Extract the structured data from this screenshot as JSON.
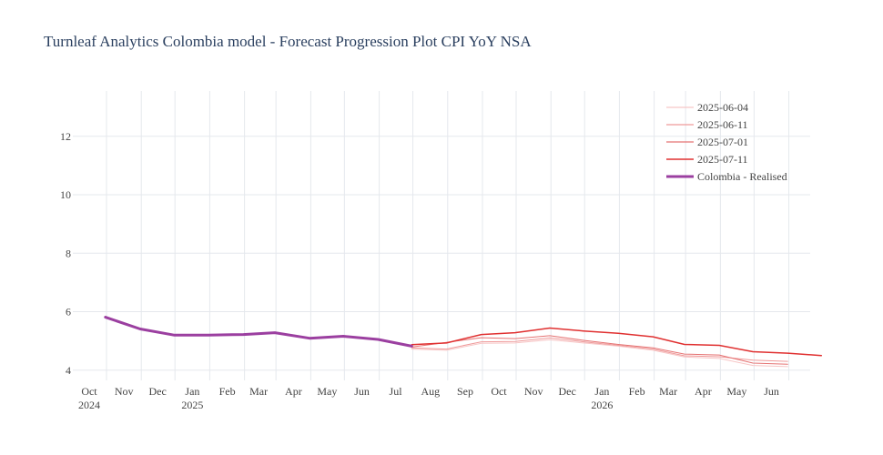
{
  "chart_data": {
    "type": "line",
    "title": "Turnleaf Analytics Colombia model - Forecast Progression Plot CPI YoY NSA",
    "xlabel": "",
    "ylabel": "",
    "ylim": [
      3.65,
      13.55
    ],
    "yticks": [
      4,
      6,
      8,
      10,
      12
    ],
    "xlim": [
      "2024-09-01",
      "2026-06-20"
    ],
    "xticks": [
      {
        "date": "2024-10-01",
        "label": "Oct",
        "year": "2024"
      },
      {
        "date": "2024-11-01",
        "label": "Nov",
        "year": ""
      },
      {
        "date": "2024-12-01",
        "label": "Dec",
        "year": ""
      },
      {
        "date": "2025-01-01",
        "label": "Jan",
        "year": "2025"
      },
      {
        "date": "2025-02-01",
        "label": "Feb",
        "year": ""
      },
      {
        "date": "2025-03-01",
        "label": "Mar",
        "year": ""
      },
      {
        "date": "2025-04-01",
        "label": "Apr",
        "year": ""
      },
      {
        "date": "2025-05-01",
        "label": "May",
        "year": ""
      },
      {
        "date": "2025-06-01",
        "label": "Jun",
        "year": ""
      },
      {
        "date": "2025-07-01",
        "label": "Jul",
        "year": ""
      },
      {
        "date": "2025-08-01",
        "label": "Aug",
        "year": ""
      },
      {
        "date": "2025-09-01",
        "label": "Sep",
        "year": ""
      },
      {
        "date": "2025-10-01",
        "label": "Oct",
        "year": ""
      },
      {
        "date": "2025-11-01",
        "label": "Nov",
        "year": ""
      },
      {
        "date": "2025-12-01",
        "label": "Dec",
        "year": ""
      },
      {
        "date": "2026-01-01",
        "label": "Jan",
        "year": "2026"
      },
      {
        "date": "2026-02-01",
        "label": "Feb",
        "year": ""
      },
      {
        "date": "2026-03-01",
        "label": "Mar",
        "year": ""
      },
      {
        "date": "2026-04-01",
        "label": "Apr",
        "year": ""
      },
      {
        "date": "2026-05-01",
        "label": "May",
        "year": ""
      },
      {
        "date": "2026-06-01",
        "label": "Jun",
        "year": ""
      }
    ],
    "grid": true,
    "legend_position": "top-right",
    "series": [
      {
        "name": "2025-06-04",
        "color": "#f7c6c6",
        "width": 1,
        "x": [
          "2025-06-30",
          "2025-07-31",
          "2025-08-31",
          "2025-09-30",
          "2025-10-31",
          "2025-11-30",
          "2025-12-31",
          "2026-01-31",
          "2026-02-28",
          "2026-03-31",
          "2026-04-30",
          "2026-05-31"
        ],
        "y": [
          4.72,
          4.68,
          4.92,
          4.93,
          5.04,
          4.93,
          4.82,
          4.68,
          4.45,
          4.4,
          4.16,
          4.12
        ]
      },
      {
        "name": "2025-06-11",
        "color": "#ef9a9a",
        "width": 1,
        "x": [
          "2025-06-30",
          "2025-07-31",
          "2025-08-31",
          "2025-09-30",
          "2025-10-31",
          "2025-11-30",
          "2025-12-31",
          "2026-01-31",
          "2026-02-28",
          "2026-03-31",
          "2026-04-30",
          "2026-05-31"
        ],
        "y": [
          4.76,
          4.72,
          4.97,
          4.98,
          5.1,
          4.97,
          4.85,
          4.72,
          4.49,
          4.46,
          4.34,
          4.3
        ]
      },
      {
        "name": "2025-07-01",
        "color": "#e57373",
        "width": 1,
        "x": [
          "2025-06-30",
          "2025-07-31",
          "2025-08-31",
          "2025-09-30",
          "2025-10-31",
          "2025-11-30",
          "2025-12-31",
          "2026-01-31",
          "2026-02-28",
          "2026-03-31",
          "2026-04-30",
          "2026-05-31"
        ],
        "y": [
          4.79,
          4.95,
          5.11,
          5.08,
          5.18,
          5.02,
          4.88,
          4.76,
          4.55,
          4.52,
          4.24,
          4.2
        ]
      },
      {
        "name": "2025-07-11",
        "color": "#e03030",
        "width": 1.5,
        "x": [
          "2025-06-30",
          "2025-07-31",
          "2025-08-31",
          "2025-09-30",
          "2025-10-31",
          "2025-11-30",
          "2025-12-31",
          "2026-01-31",
          "2026-02-28",
          "2026-03-31",
          "2026-04-30",
          "2026-05-31",
          "2026-06-30"
        ],
        "y": [
          4.87,
          4.93,
          5.22,
          5.28,
          5.44,
          5.34,
          5.26,
          5.14,
          4.88,
          4.85,
          4.63,
          4.58,
          4.5
        ]
      },
      {
        "name": "Colombia - Realised",
        "color": "#9b3fa0",
        "width": 3,
        "x": [
          "2024-09-30",
          "2024-10-31",
          "2024-11-30",
          "2024-12-31",
          "2025-01-31",
          "2025-02-28",
          "2025-03-31",
          "2025-04-30",
          "2025-05-31",
          "2025-06-30"
        ],
        "y": [
          5.81,
          5.41,
          5.2,
          5.2,
          5.22,
          5.28,
          5.09,
          5.16,
          5.05,
          4.82
        ]
      }
    ]
  }
}
